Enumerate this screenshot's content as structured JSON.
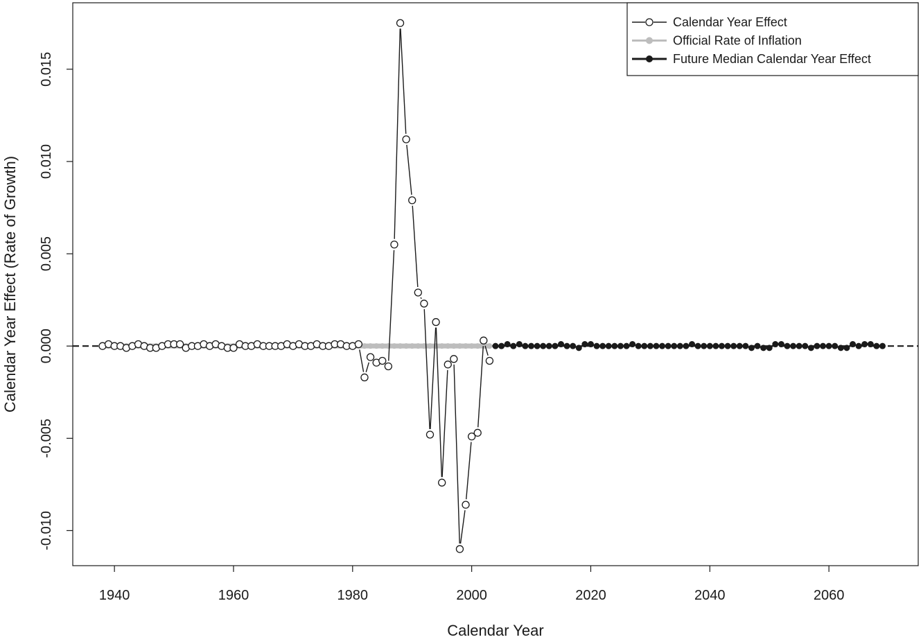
{
  "chart_data": {
    "type": "line",
    "title": "",
    "xlabel": "Calendar Year",
    "ylabel": "Calendar Year Effect (Rate of Growth)",
    "xlim": [
      1933,
      2075
    ],
    "ylim": [
      -0.0119,
      0.0186
    ],
    "x_ticks": [
      1940,
      1960,
      1980,
      2000,
      2020,
      2040,
      2060
    ],
    "x_tick_labels": [
      "1940",
      "1960",
      "1980",
      "2000",
      "2020",
      "2040",
      "2060"
    ],
    "y_ticks": [
      -0.01,
      -0.005,
      0.0,
      0.005,
      0.01,
      0.015
    ],
    "y_tick_labels": [
      "-0.010",
      "-0.005",
      "0.000",
      "0.005",
      "0.010",
      "0.015"
    ],
    "grid": false,
    "legend_position": "top-right",
    "reference_line": {
      "y": 0,
      "style": "dashed",
      "color": "#1a1a1a"
    },
    "series": [
      {
        "name": "Calendar Year Effect",
        "style": "line-open-circles",
        "color": "#1a1a1a",
        "x": [
          1938,
          1939,
          1940,
          1941,
          1942,
          1943,
          1944,
          1945,
          1946,
          1947,
          1948,
          1949,
          1950,
          1951,
          1952,
          1953,
          1954,
          1955,
          1956,
          1957,
          1958,
          1959,
          1960,
          1961,
          1962,
          1963,
          1964,
          1965,
          1966,
          1967,
          1968,
          1969,
          1970,
          1971,
          1972,
          1973,
          1974,
          1975,
          1976,
          1977,
          1978,
          1979,
          1980,
          1981,
          1982,
          1983,
          1984,
          1985,
          1986,
          1987,
          1988,
          1989,
          1990,
          1991,
          1992,
          1993,
          1994,
          1995,
          1996,
          1997,
          1998,
          1999,
          2000,
          2001,
          2002,
          2003
        ],
        "y": [
          0.0,
          0.0001,
          0.0,
          0.0,
          -0.0001,
          0.0,
          0.0001,
          0.0,
          -0.0001,
          -0.0001,
          0.0,
          0.0001,
          0.0001,
          0.0001,
          -0.0001,
          0.0,
          0.0,
          0.0001,
          0.0,
          0.0001,
          0.0,
          -0.0001,
          -0.0001,
          0.0001,
          0.0,
          0.0,
          0.0001,
          0.0,
          0.0,
          0.0,
          0.0,
          0.0001,
          0.0,
          0.0001,
          0.0,
          0.0,
          0.0001,
          0.0,
          0.0,
          0.0001,
          0.0001,
          0.0,
          0.0,
          0.0001,
          -0.0017,
          -0.0006,
          -0.0009,
          -0.0008,
          -0.0011,
          0.0055,
          0.0175,
          0.0112,
          0.0079,
          0.0029,
          0.0023,
          -0.0048,
          0.0013,
          -0.0074,
          -0.001,
          -0.0007,
          -0.011,
          -0.0086,
          -0.0049,
          -0.0047,
          0.0003,
          -0.0008
        ]
      },
      {
        "name": "Official Rate of Inflation",
        "style": "line-filled-circles",
        "color": "#bdbdbd",
        "x": [
          1938,
          1939,
          1940,
          1941,
          1942,
          1943,
          1944,
          1945,
          1946,
          1947,
          1948,
          1949,
          1950,
          1951,
          1952,
          1953,
          1954,
          1955,
          1956,
          1957,
          1958,
          1959,
          1960,
          1961,
          1962,
          1963,
          1964,
          1965,
          1966,
          1967,
          1968,
          1969,
          1970,
          1971,
          1972,
          1973,
          1974,
          1975,
          1976,
          1977,
          1978,
          1979,
          1980,
          1981,
          1982,
          1983,
          1984,
          1985,
          1986,
          1987,
          1988,
          1989,
          1990,
          1991,
          1992,
          1993,
          1994,
          1995,
          1996,
          1997,
          1998,
          1999,
          2000,
          2001,
          2002,
          2003
        ],
        "y": [
          0,
          0,
          0,
          0,
          0,
          0,
          0,
          0,
          0,
          0,
          0,
          0,
          0,
          0,
          0,
          0,
          0,
          0,
          0,
          0,
          0,
          0,
          0,
          0,
          0,
          0,
          0,
          0,
          0,
          0,
          0,
          0,
          0,
          0,
          0,
          0,
          0,
          0,
          0,
          0,
          0,
          0,
          0,
          0,
          0,
          0,
          0,
          0,
          0,
          0,
          0,
          0,
          0,
          0,
          0,
          0,
          0,
          0,
          0,
          0,
          0,
          0,
          0,
          0,
          0,
          0
        ]
      },
      {
        "name": "Future Median Calendar Year Effect",
        "style": "line-filled-circles",
        "color": "#1a1a1a",
        "x": [
          2004,
          2005,
          2006,
          2007,
          2008,
          2009,
          2010,
          2011,
          2012,
          2013,
          2014,
          2015,
          2016,
          2017,
          2018,
          2019,
          2020,
          2021,
          2022,
          2023,
          2024,
          2025,
          2026,
          2027,
          2028,
          2029,
          2030,
          2031,
          2032,
          2033,
          2034,
          2035,
          2036,
          2037,
          2038,
          2039,
          2040,
          2041,
          2042,
          2043,
          2044,
          2045,
          2046,
          2047,
          2048,
          2049,
          2050,
          2051,
          2052,
          2053,
          2054,
          2055,
          2056,
          2057,
          2058,
          2059,
          2060,
          2061,
          2062,
          2063,
          2064,
          2065,
          2066,
          2067,
          2068,
          2069
        ],
        "y": [
          0.0,
          0.0,
          0.0001,
          0.0,
          0.0001,
          0.0,
          0.0,
          0.0,
          0.0,
          0.0,
          0.0,
          0.0001,
          0.0,
          0.0,
          -0.0001,
          0.0001,
          0.0001,
          0.0,
          0.0,
          0.0,
          0.0,
          0.0,
          0.0,
          0.0001,
          0.0,
          0.0,
          0.0,
          0.0,
          0.0,
          0.0,
          0.0,
          0.0,
          0.0,
          0.0001,
          0.0,
          0.0,
          0.0,
          0.0,
          0.0,
          0.0,
          0.0,
          0.0,
          0.0,
          -0.0001,
          0.0,
          -0.0001,
          -0.0001,
          0.0001,
          0.0001,
          0.0,
          0.0,
          0.0,
          0.0,
          -0.0001,
          0.0,
          0.0,
          0.0,
          0.0,
          -0.0001,
          -0.0001,
          0.0001,
          0.0,
          0.0001,
          0.0001,
          0.0,
          0.0
        ]
      }
    ]
  }
}
